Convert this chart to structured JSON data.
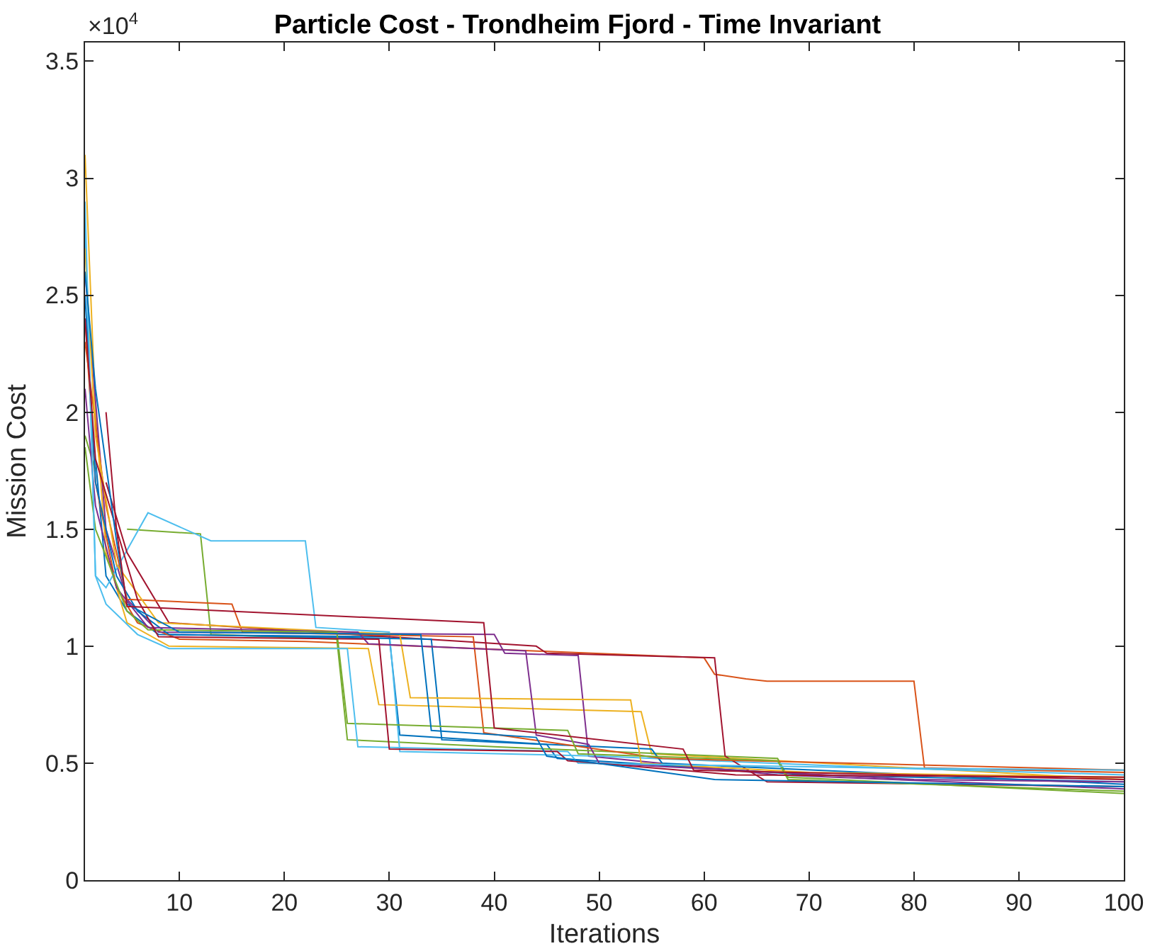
{
  "chart_data": {
    "type": "line",
    "title": "Particle Cost - Trondheim Fjord - Time Invariant",
    "xlabel": "Iterations",
    "ylabel": "Mission Cost",
    "annotations": [
      "×10$^{4}$"
    ],
    "xlim": [
      1,
      100
    ],
    "xticks": [
      10,
      20,
      30,
      40,
      50,
      60,
      70,
      80,
      90,
      100
    ],
    "ylim": [
      0,
      3.58
    ],
    "yticks": [
      0,
      0.5,
      1,
      1.5,
      2,
      2.5,
      3,
      3.5
    ],
    "grid": false,
    "series": [
      {
        "color": "#0072bd",
        "x": [
          2,
          3,
          5,
          8,
          30,
          31,
          45,
          46,
          70,
          100
        ],
        "values": [
          1.8,
          1.3,
          1.15,
          1.05,
          1.04,
          0.62,
          0.58,
          0.52,
          0.45,
          0.42
        ]
      },
      {
        "color": "#d95319",
        "x": [
          1,
          2,
          4,
          6,
          10,
          22,
          60,
          61,
          64,
          66,
          80,
          81,
          100
        ],
        "values": [
          2.4,
          1.7,
          1.25,
          1.1,
          1.03,
          1.02,
          0.95,
          0.88,
          0.86,
          0.85,
          0.85,
          0.48,
          0.46
        ]
      },
      {
        "color": "#edb120",
        "x": [
          1,
          2,
          3,
          5,
          9,
          28,
          29,
          54,
          55,
          100
        ],
        "values": [
          3.1,
          2.0,
          1.4,
          1.1,
          1.0,
          0.99,
          0.75,
          0.72,
          0.54,
          0.43
        ]
      },
      {
        "color": "#7e2f8e",
        "x": [
          1,
          3,
          5,
          8,
          40,
          41,
          48,
          49,
          67,
          100
        ],
        "values": [
          2.6,
          1.5,
          1.2,
          1.06,
          1.05,
          0.97,
          0.96,
          0.53,
          0.45,
          0.39
        ]
      },
      {
        "color": "#77ac30",
        "x": [
          1,
          2,
          4,
          5,
          12,
          13,
          25,
          26,
          40,
          67,
          68,
          100
        ],
        "values": [
          1.9,
          1.75,
          null,
          1.5,
          1.48,
          1.05,
          1.03,
          0.6,
          0.57,
          0.52,
          0.44,
          0.37
        ]
      },
      {
        "color": "#4dbeee",
        "x": [
          1,
          2,
          3,
          7,
          13,
          14,
          22,
          23,
          30,
          31,
          50,
          77,
          100
        ],
        "values": [
          2.8,
          1.3,
          1.25,
          1.57,
          1.45,
          1.45,
          1.45,
          1.08,
          1.06,
          0.55,
          0.53,
          0.48,
          0.45
        ]
      },
      {
        "color": "#a2142f",
        "x": [
          3,
          5,
          9,
          44,
          45,
          61,
          62,
          66,
          100
        ],
        "values": [
          1.7,
          1.4,
          1.1,
          1.0,
          0.97,
          0.95,
          0.53,
          0.42,
          0.4
        ]
      },
      {
        "color": "#0072bd",
        "x": [
          1,
          2,
          4,
          6,
          9,
          34,
          35,
          55,
          56,
          100
        ],
        "values": [
          2.5,
          1.7,
          1.3,
          1.15,
          1.05,
          1.03,
          0.6,
          0.56,
          0.5,
          0.41
        ]
      },
      {
        "color": "#d95319",
        "x": [
          1,
          3,
          5,
          15,
          16,
          38,
          39,
          56,
          100
        ],
        "values": [
          2.3,
          1.6,
          1.2,
          1.18,
          1.06,
          1.04,
          0.63,
          0.52,
          0.47
        ]
      },
      {
        "color": "#edb120",
        "x": [
          1,
          2,
          4,
          8,
          31,
          32,
          53,
          54,
          70,
          100
        ],
        "values": [
          2.7,
          1.9,
          1.35,
          1.1,
          1.05,
          0.78,
          0.77,
          0.5,
          0.46,
          0.44
        ]
      },
      {
        "color": "#7e2f8e",
        "x": [
          1,
          2,
          4,
          7,
          27,
          28,
          43,
          44,
          49,
          50,
          80,
          100
        ],
        "values": [
          2.1,
          1.6,
          1.25,
          1.08,
          1.06,
          1.01,
          0.98,
          0.62,
          0.58,
          0.5,
          0.43,
          0.42
        ]
      },
      {
        "color": "#77ac30",
        "x": [
          1,
          2,
          5,
          7,
          25,
          26,
          47,
          48,
          67,
          68,
          100
        ],
        "values": [
          1.85,
          1.5,
          1.15,
          1.07,
          1.06,
          0.67,
          0.64,
          0.54,
          0.51,
          0.43,
          0.38
        ]
      },
      {
        "color": "#4dbeee",
        "x": [
          1,
          2,
          3,
          6,
          9,
          26,
          27,
          47,
          48,
          76,
          100
        ],
        "values": [
          2.9,
          1.3,
          1.18,
          1.05,
          0.99,
          0.99,
          0.57,
          0.55,
          0.5,
          0.48,
          0.47
        ]
      },
      {
        "color": "#a2142f",
        "x": [
          1,
          2,
          4,
          6,
          8,
          29,
          30,
          46,
          47,
          63,
          100
        ],
        "values": [
          2.4,
          1.8,
          1.5,
          1.2,
          1.04,
          1.03,
          0.56,
          0.55,
          0.51,
          0.45,
          0.44
        ]
      },
      {
        "color": "#0072bd",
        "x": [
          1,
          2,
          4,
          5,
          10,
          33,
          34,
          44,
          45,
          61,
          100
        ],
        "values": [
          2.6,
          2.1,
          1.45,
          1.18,
          1.06,
          1.05,
          0.64,
          0.61,
          0.53,
          0.43,
          0.4
        ]
      },
      {
        "color": "#a2142f",
        "x": [
          3,
          4,
          5,
          39,
          40,
          58,
          59,
          100
        ],
        "values": [
          2.0,
          1.5,
          1.17,
          1.1,
          0.65,
          0.56,
          0.47,
          0.43
        ]
      }
    ]
  }
}
